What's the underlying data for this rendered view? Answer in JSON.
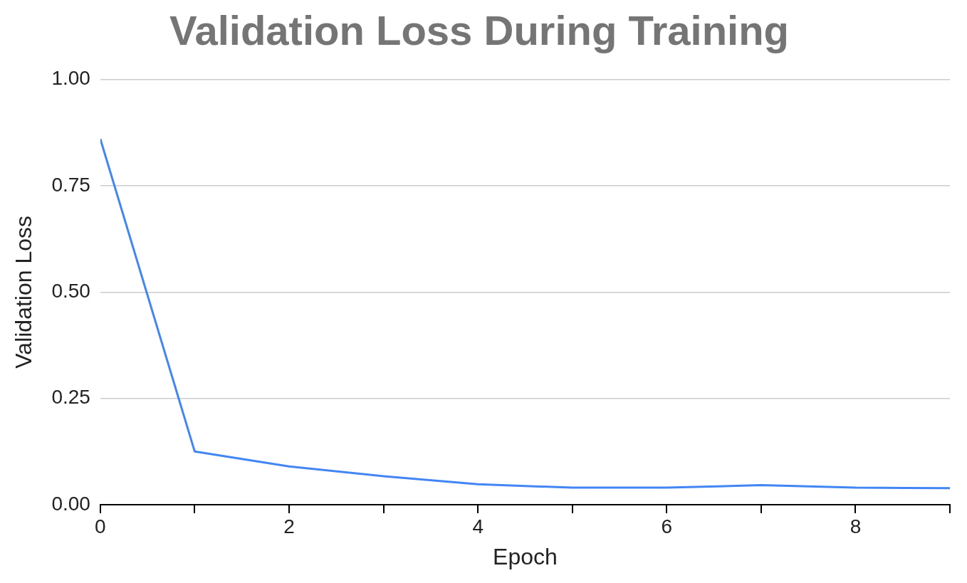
{
  "chart_data": {
    "type": "line",
    "title": "Validation Loss During Training",
    "xlabel": "Epoch",
    "ylabel": "Validation Loss",
    "x": [
      0,
      1,
      2,
      3,
      4,
      5,
      6,
      7,
      8,
      9
    ],
    "series": [
      {
        "color": "#4285f4",
        "values": [
          0.86,
          0.125,
          0.09,
          0.067,
          0.048,
          0.04,
          0.04,
          0.046,
          0.04,
          0.039
        ]
      }
    ],
    "xlim": [
      0,
      9
    ],
    "xticks": [
      0,
      {
        "value": 1,
        "label": null
      },
      2,
      {
        "value": 3,
        "label": null
      },
      4,
      {
        "value": 5,
        "label": null
      },
      6,
      {
        "value": 7,
        "label": null
      },
      8,
      {
        "value": 9,
        "label": null
      }
    ],
    "ylim": [
      0,
      1
    ],
    "yticks": [
      {
        "value": 0,
        "label": "0.00"
      },
      {
        "value": 0.25,
        "label": "0.25"
      },
      {
        "value": 0.5,
        "label": "0.50"
      },
      {
        "value": 0.75,
        "label": "0.75"
      },
      {
        "value": 1,
        "label": "1.00"
      }
    ],
    "grid": "y",
    "legend": false,
    "marker": "none",
    "line_style": "solid"
  }
}
